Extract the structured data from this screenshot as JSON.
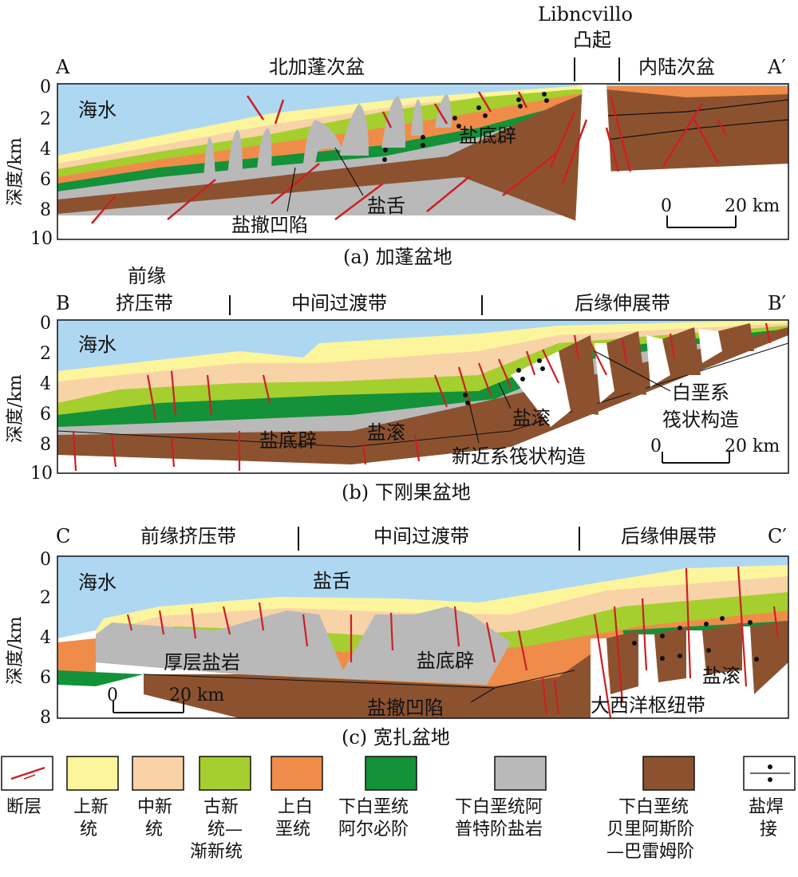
{
  "colors": {
    "sea": "#aed8f2",
    "pliocene": "#fdf59c",
    "miocene": "#f8d3a8",
    "paleogene": "#a5cf2e",
    "upper_cretaceous": "#ef8c4a",
    "albian": "#139239",
    "aptian_salt": "#b9b9b9",
    "barremian": "#8c5230",
    "fault": "#cc1f24"
  },
  "panel_a": {
    "caption": "(a) 加蓬盆地",
    "left_letter": "A",
    "right_letter": "A′",
    "zone_north": "北加蓬次盆",
    "zone_inland": "内陆次盆",
    "uplift_name": "Libncvillo",
    "uplift_label": "凸起",
    "sea_label": "海水",
    "label_salt_diapir": "盐底辟",
    "label_salt_tongue": "盐舌",
    "label_withdrawal": "盐撤凹陷",
    "scale_zero": "0",
    "scale_end": "20 km",
    "y_title": "深度/km",
    "y_ticks": [
      "0",
      "2",
      "4",
      "6",
      "8",
      "10"
    ]
  },
  "panel_b": {
    "caption": "(b) 下刚果盆地",
    "left_letter": "B",
    "right_letter": "B′",
    "zone_front_1": "前缘",
    "zone_front_2": "挤压带",
    "zone_middle": "中间过渡带",
    "zone_rear": "后缘伸展带",
    "sea_label": "海水",
    "label_diapir": "盐底辟",
    "label_roll_1": "盐滚",
    "label_roll_2": "盐滚",
    "label_neogene_raft": "新近系筏状构造",
    "label_cret_raft_1": "白垩系",
    "label_cret_raft_2": "筏状构造",
    "scale_zero": "0",
    "scale_end": "20 km",
    "y_title": "深度/km",
    "y_ticks": [
      "0",
      "2",
      "4",
      "6",
      "8",
      "10"
    ]
  },
  "panel_c": {
    "caption": "(c) 宽扎盆地",
    "left_letter": "C",
    "right_letter": "C′",
    "zone_front": "前缘挤压带",
    "zone_middle": "中间过渡带",
    "zone_rear": "后缘伸展带",
    "sea_label": "海水",
    "label_tongue": "盐舌",
    "label_thick_salt": "厚层盐岩",
    "label_diapir": "盐底辟",
    "label_withdrawal": "盐撤凹陷",
    "label_roll": "盐滚",
    "label_hinge": "大西洋枢纽带",
    "scale_zero": "0",
    "scale_end": "20 km",
    "y_title": "深度/km",
    "y_ticks": [
      "0",
      "2",
      "4",
      "6",
      "8"
    ]
  },
  "legend": [
    {
      "key": "fault",
      "lines": [
        "断层"
      ]
    },
    {
      "key": "pliocene",
      "lines": [
        "上新",
        "统"
      ]
    },
    {
      "key": "miocene",
      "lines": [
        "中新",
        "统"
      ]
    },
    {
      "key": "paleogene",
      "lines": [
        "古新",
        "统—",
        "渐新统"
      ]
    },
    {
      "key": "upper_cretaceous",
      "lines": [
        "上白",
        "垩统"
      ]
    },
    {
      "key": "albian",
      "lines": [
        "下白垩统",
        "阿尔必阶"
      ]
    },
    {
      "key": "aptian_salt",
      "lines": [
        "下白垩统阿",
        "普特阶盐岩"
      ]
    },
    {
      "key": "barremian",
      "lines": [
        "下白垩统",
        "贝里阿斯阶",
        "—巴雷姆阶"
      ]
    },
    {
      "key": "salt_weld",
      "lines": [
        "盐焊",
        "接"
      ]
    }
  ]
}
